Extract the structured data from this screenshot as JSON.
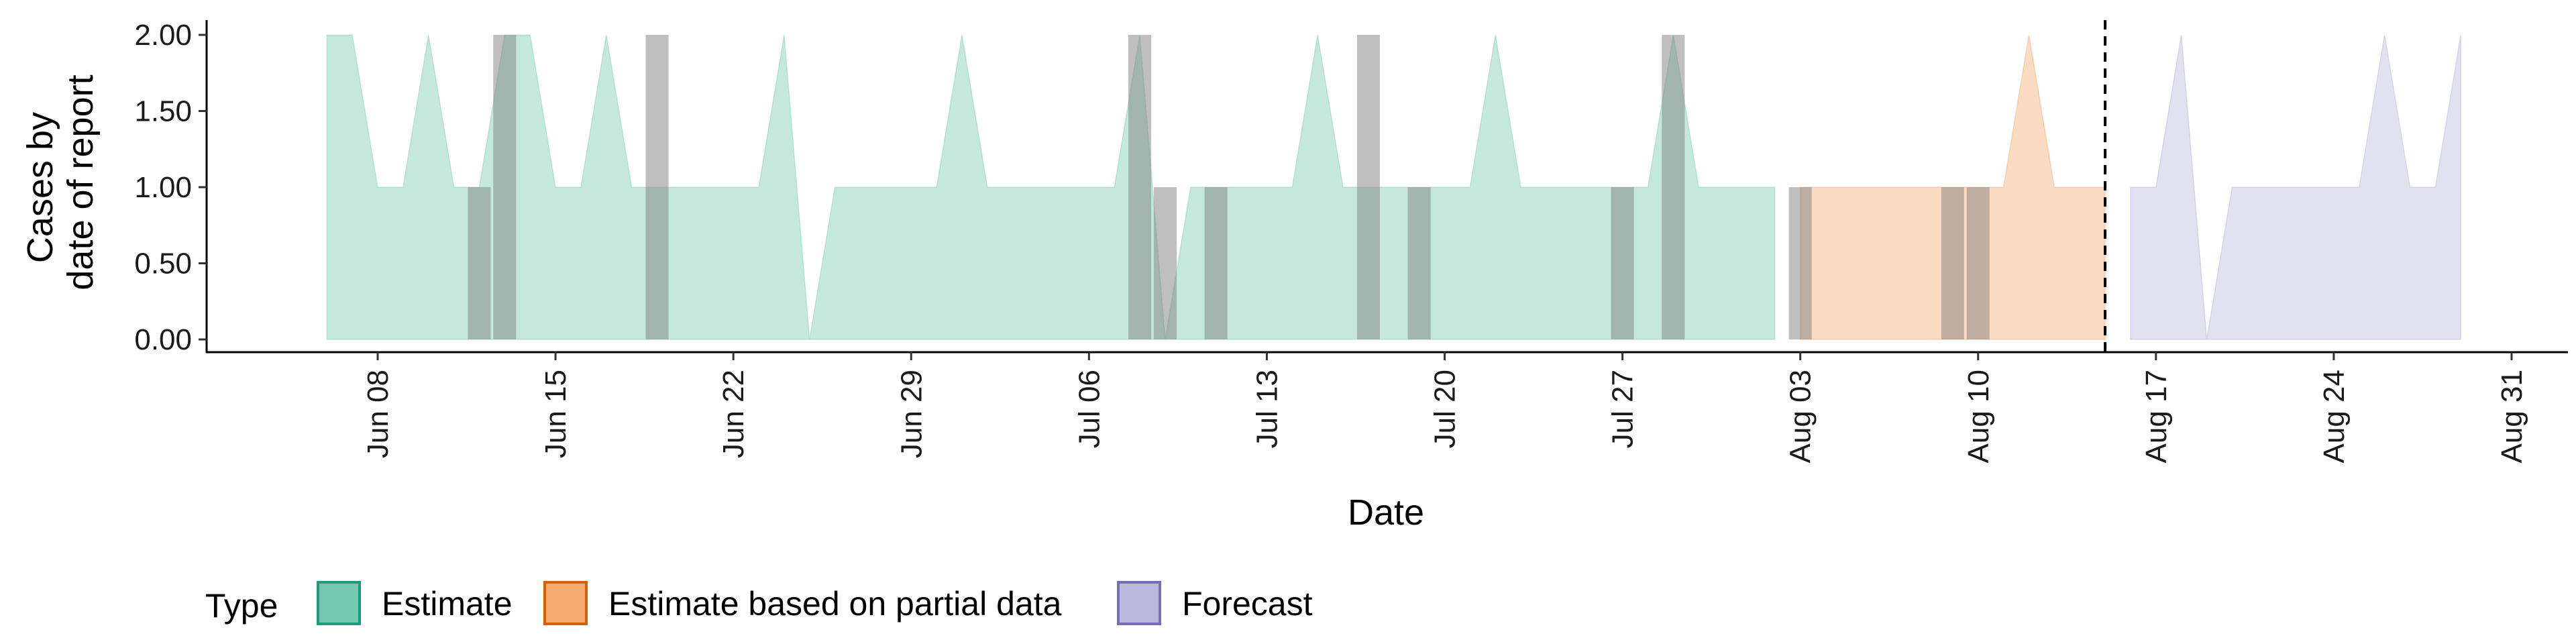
{
  "chart_data": {
    "type": "area",
    "title": "",
    "xlabel": "Date",
    "ylabel_lines": [
      "Cases by",
      "date of report"
    ],
    "ylim": [
      0,
      2
    ],
    "y_ticks": [
      "0.00",
      "0.50",
      "1.00",
      "1.50",
      "2.00"
    ],
    "xlim": [
      "2020-06-01",
      "2020-09-01"
    ],
    "x_ticks": [
      {
        "date": "2020-06-08",
        "label": "Jun 08"
      },
      {
        "date": "2020-06-15",
        "label": "Jun 15"
      },
      {
        "date": "2020-06-22",
        "label": "Jun 22"
      },
      {
        "date": "2020-06-29",
        "label": "Jun 29"
      },
      {
        "date": "2020-07-06",
        "label": "Jul 06"
      },
      {
        "date": "2020-07-13",
        "label": "Jul 13"
      },
      {
        "date": "2020-07-20",
        "label": "Jul 20"
      },
      {
        "date": "2020-07-27",
        "label": "Jul 27"
      },
      {
        "date": "2020-08-03",
        "label": "Aug 03"
      },
      {
        "date": "2020-08-10",
        "label": "Aug 10"
      },
      {
        "date": "2020-08-17",
        "label": "Aug 17"
      },
      {
        "date": "2020-08-24",
        "label": "Aug 24"
      },
      {
        "date": "2020-08-31",
        "label": "Aug 31"
      }
    ],
    "forecast_date": "2020-08-15",
    "grid": false,
    "legend_position": "bottom-left",
    "legend_title": "Type",
    "series": [
      {
        "name": "Estimate",
        "fill": "#66c2a5",
        "stroke": "#1b9e77",
        "dates": [
          "2020-06-06",
          "2020-06-07",
          "2020-06-08",
          "2020-06-09",
          "2020-06-10",
          "2020-06-11",
          "2020-06-12",
          "2020-06-13",
          "2020-06-14",
          "2020-06-15",
          "2020-06-16",
          "2020-06-17",
          "2020-06-18",
          "2020-06-19",
          "2020-06-20",
          "2020-06-21",
          "2020-06-22",
          "2020-06-23",
          "2020-06-24",
          "2020-06-25",
          "2020-06-26",
          "2020-06-27",
          "2020-06-28",
          "2020-06-29",
          "2020-06-30",
          "2020-07-01",
          "2020-07-02",
          "2020-07-03",
          "2020-07-04",
          "2020-07-05",
          "2020-07-06",
          "2020-07-07",
          "2020-07-08",
          "2020-07-09",
          "2020-07-10",
          "2020-07-11",
          "2020-07-12",
          "2020-07-13",
          "2020-07-14",
          "2020-07-15",
          "2020-07-16",
          "2020-07-17",
          "2020-07-18",
          "2020-07-19",
          "2020-07-20",
          "2020-07-21",
          "2020-07-22",
          "2020-07-23",
          "2020-07-24",
          "2020-07-25",
          "2020-07-26",
          "2020-07-27",
          "2020-07-28",
          "2020-07-29",
          "2020-07-30",
          "2020-07-31",
          "2020-08-01",
          "2020-08-02"
        ],
        "values": [
          2,
          2,
          1,
          1,
          2,
          1,
          1,
          2,
          2,
          1,
          1,
          2,
          1,
          1,
          1,
          1,
          1,
          1,
          2,
          0,
          1,
          1,
          1,
          1,
          1,
          2,
          1,
          1,
          1,
          1,
          1,
          1,
          2,
          0,
          1,
          1,
          1,
          1,
          1,
          2,
          1,
          1,
          1,
          1,
          1,
          1,
          2,
          1,
          1,
          1,
          1,
          1,
          1,
          2,
          1,
          1,
          1,
          1
        ]
      },
      {
        "name": "Estimate based on partial data",
        "fill": "#f4a261",
        "stroke": "#d95f02",
        "dates": [
          "2020-08-03",
          "2020-08-04",
          "2020-08-05",
          "2020-08-06",
          "2020-08-07",
          "2020-08-08",
          "2020-08-09",
          "2020-08-10",
          "2020-08-11",
          "2020-08-12",
          "2020-08-13",
          "2020-08-14",
          "2020-08-15"
        ],
        "values": [
          1,
          1,
          1,
          1,
          1,
          1,
          1,
          1,
          1,
          2,
          1,
          1,
          1
        ]
      },
      {
        "name": "Forecast",
        "fill": "#b3b0d8",
        "stroke": "#7570b3",
        "dates": [
          "2020-08-16",
          "2020-08-17",
          "2020-08-18",
          "2020-08-19",
          "2020-08-20",
          "2020-08-21",
          "2020-08-22",
          "2020-08-23",
          "2020-08-24",
          "2020-08-25",
          "2020-08-26",
          "2020-08-27",
          "2020-08-28",
          "2020-08-29"
        ],
        "values": [
          1,
          1,
          2,
          0,
          1,
          1,
          1,
          1,
          1,
          1,
          2,
          1,
          1,
          2
        ]
      }
    ],
    "reported_cases": {
      "fill": "#808080",
      "points": [
        {
          "date": "2020-06-12",
          "value": 1
        },
        {
          "date": "2020-06-13",
          "value": 2
        },
        {
          "date": "2020-06-19",
          "value": 2
        },
        {
          "date": "2020-07-08",
          "value": 2
        },
        {
          "date": "2020-07-09",
          "value": 1
        },
        {
          "date": "2020-07-11",
          "value": 1
        },
        {
          "date": "2020-07-17",
          "value": 2
        },
        {
          "date": "2020-07-19",
          "value": 1
        },
        {
          "date": "2020-07-27",
          "value": 1
        },
        {
          "date": "2020-07-29",
          "value": 2
        },
        {
          "date": "2020-08-03",
          "value": 1
        },
        {
          "date": "2020-08-09",
          "value": 1
        },
        {
          "date": "2020-08-10",
          "value": 1
        }
      ]
    }
  }
}
